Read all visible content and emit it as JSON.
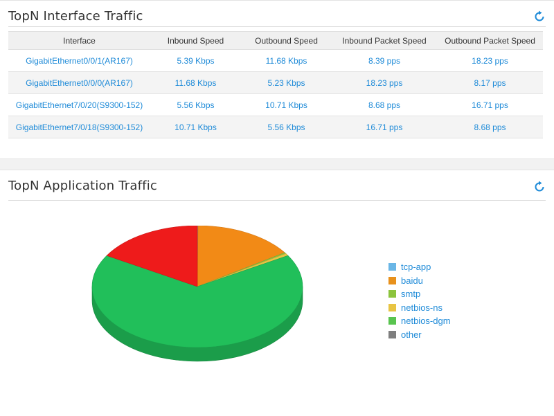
{
  "interface_panel": {
    "title": "TopN Interface Traffic",
    "columns": [
      "Interface",
      "Inbound Speed",
      "Outbound Speed",
      "Inbound Packet Speed",
      "Outbound Packet Speed"
    ],
    "rows": [
      [
        "GigabitEthernet0/0/1(AR167)",
        "5.39 Kbps",
        "11.68 Kbps",
        "8.39 pps",
        "18.23 pps"
      ],
      [
        "GigabitEthernet0/0/0(AR167)",
        "11.68 Kbps",
        "5.23 Kbps",
        "18.23 pps",
        "8.17 pps"
      ],
      [
        "GigabitEthernet7/0/20(S9300-152)",
        "5.56 Kbps",
        "10.71 Kbps",
        "8.68 pps",
        "16.71 pps"
      ],
      [
        "GigabitEthernet7/0/18(S9300-152)",
        "10.71 Kbps",
        "5.56 Kbps",
        "16.71 pps",
        "8.68 pps"
      ]
    ]
  },
  "application_panel": {
    "title": "TopN Application Traffic"
  },
  "icons": {
    "refresh": "refresh-icon"
  },
  "colors": {
    "accent": "#1f8bd8"
  },
  "chart_data": {
    "type": "pie",
    "title": "",
    "legend_position": "right",
    "slices": [
      {
        "name": "tcp-app",
        "value": 0.1,
        "color": "#6ab6e6"
      },
      {
        "name": "baidu",
        "value": 15.5,
        "color": "#f28a16"
      },
      {
        "name": "smtp",
        "value": 0.3,
        "color": "#8cc43d"
      },
      {
        "name": "netbios-ns",
        "value": 0.6,
        "color": "#e8c443"
      },
      {
        "name": "netbios-dgm",
        "value": 67.0,
        "color": "#21bf5a"
      },
      {
        "name": "other",
        "value": 16.5,
        "color": "#ee1b1b"
      }
    ],
    "legend": [
      {
        "name": "tcp-app",
        "color": "#6ab6e6"
      },
      {
        "name": "baidu",
        "color": "#e8911c"
      },
      {
        "name": "smtp",
        "color": "#8cc43d"
      },
      {
        "name": "netbios-ns",
        "color": "#e8c443"
      },
      {
        "name": "netbios-dgm",
        "color": "#59c44f"
      },
      {
        "name": "other",
        "color": "#7f7f7f"
      }
    ]
  }
}
